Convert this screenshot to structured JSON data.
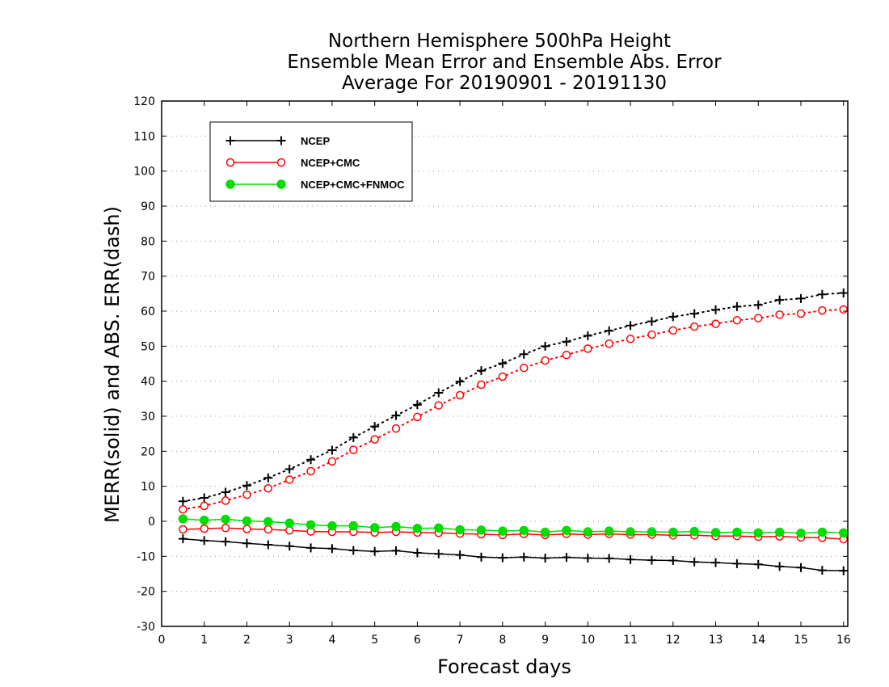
{
  "chart_data": {
    "type": "line",
    "title": [
      "Northern Hemisphere 500hPa Height",
      "Ensemble Mean Error and Ensemble Abs. Error",
      "Average For 20190901 - 20191130"
    ],
    "xlabel": "Forecast days",
    "ylabel": "MERR(solid) and ABS. ERR(dash)",
    "xlim": [
      0,
      16.1
    ],
    "ylim": [
      -30,
      120
    ],
    "x_ticks": [
      0,
      1,
      2,
      3,
      4,
      5,
      6,
      7,
      8,
      9,
      10,
      11,
      12,
      13,
      14,
      15,
      16
    ],
    "y_ticks": [
      -30,
      -20,
      -10,
      0,
      10,
      20,
      30,
      40,
      50,
      60,
      70,
      80,
      90,
      100,
      110,
      120
    ],
    "grid": "dotted horizontal",
    "legend_position": "top-left",
    "x": [
      0.5,
      1,
      1.5,
      2,
      2.5,
      3,
      3.5,
      4,
      4.5,
      5,
      5.5,
      6,
      6.5,
      7,
      7.5,
      8,
      8.5,
      9,
      9.5,
      10,
      10.5,
      11,
      11.5,
      12,
      12.5,
      13,
      13.5,
      14,
      14.5,
      15,
      15.5,
      16
    ],
    "series": [
      {
        "name": "NCEP",
        "color": "#000000",
        "marker": "plus",
        "merr": [
          -5,
          -5.5,
          -5.8,
          -6.3,
          -6.7,
          -7.1,
          -7.6,
          -7.8,
          -8.3,
          -8.6,
          -8.4,
          -9,
          -9.3,
          -9.6,
          -10.2,
          -10.4,
          -10.2,
          -10.5,
          -10.3,
          -10.5,
          -10.6,
          -10.9,
          -11.1,
          -11.2,
          -11.6,
          -11.8,
          -12.1,
          -12.3,
          -12.9,
          -13.2,
          -14,
          -14.1
        ],
        "abs_err": [
          5.7,
          6.7,
          8.3,
          10.2,
          12.4,
          14.9,
          17.6,
          20.3,
          23.9,
          27.1,
          30.2,
          33.3,
          36.7,
          39.9,
          43,
          45.1,
          47.7,
          50,
          51.3,
          53,
          54.4,
          55.9,
          57.1,
          58.4,
          59.3,
          60.4,
          61.3,
          61.8,
          63.2,
          63.6,
          64.8,
          65.2
        ]
      },
      {
        "name": "NCEP+CMC",
        "color": "#ff0000",
        "marker": "open-circle",
        "merr": [
          -2.3,
          -2.1,
          -1.9,
          -2.2,
          -2.3,
          -2.6,
          -2.9,
          -3,
          -3,
          -3.2,
          -3,
          -3.2,
          -3.3,
          -3.5,
          -3.7,
          -3.9,
          -3.6,
          -3.9,
          -3.6,
          -3.8,
          -3.6,
          -3.8,
          -3.8,
          -4,
          -4,
          -4.2,
          -4.2,
          -4.4,
          -4.3,
          -4.6,
          -4.7,
          -5.1
        ],
        "abs_err": [
          3.4,
          4.4,
          5.9,
          7.6,
          9.4,
          11.9,
          14.3,
          17.1,
          20.4,
          23.4,
          26.5,
          29.8,
          33.1,
          36,
          39,
          41.3,
          43.8,
          45.9,
          47.5,
          49.3,
          50.7,
          52.1,
          53.3,
          54.5,
          55.6,
          56.4,
          57.4,
          58,
          59,
          59.3,
          60.2,
          60.5
        ]
      },
      {
        "name": "NCEP+CMC+FNMOC",
        "color": "#00dd00",
        "marker": "filled-circle",
        "merr": [
          0.7,
          0.3,
          0.6,
          0.1,
          -0.1,
          -0.5,
          -1,
          -1.3,
          -1.3,
          -1.8,
          -1.5,
          -2,
          -1.9,
          -2.4,
          -2.5,
          -2.8,
          -2.6,
          -3.1,
          -2.6,
          -3,
          -2.8,
          -3,
          -3,
          -3.1,
          -2.9,
          -3.2,
          -3.1,
          -3.3,
          -3.1,
          -3.4,
          -3.1,
          -3.3
        ]
      }
    ]
  }
}
